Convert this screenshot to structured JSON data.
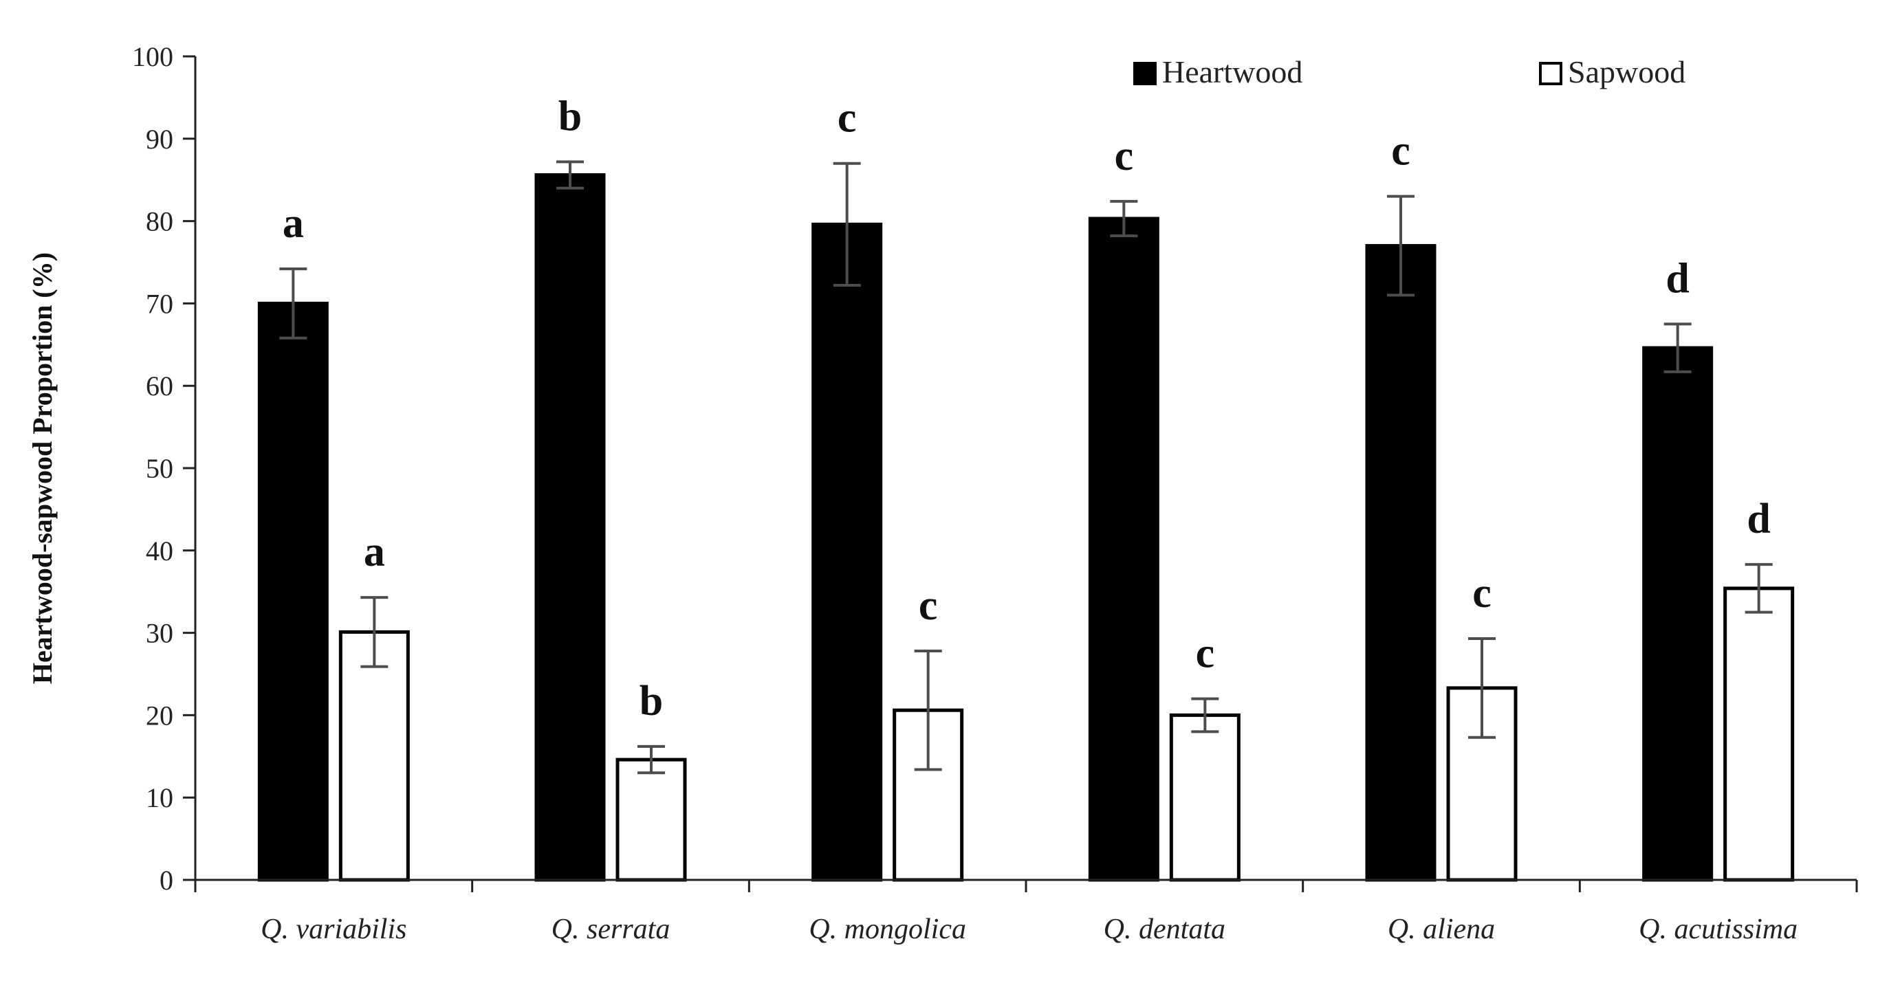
{
  "chart_data": {
    "type": "bar",
    "title": "",
    "xlabel": "",
    "ylabel": "Heartwood-sapwood Proportion (%)",
    "ylim": [
      0,
      100
    ],
    "yticks": [
      0,
      10,
      20,
      30,
      40,
      50,
      60,
      70,
      80,
      90,
      100
    ],
    "grid": false,
    "legend_position": "top-right",
    "categories": [
      "Q. variabilis",
      "Q. serrata",
      "Q. mongolica",
      "Q. dentata",
      "Q. aliena",
      "Q. acutissima"
    ],
    "series": [
      {
        "name": "Heartwood",
        "color": "#000000",
        "values": [
          70.0,
          85.6,
          79.6,
          80.3,
          77.0,
          64.6
        ],
        "errors": [
          4.2,
          1.6,
          7.4,
          2.1,
          6.0,
          2.9
        ],
        "significance": [
          "a",
          "b",
          "c",
          "c",
          "c",
          "d"
        ]
      },
      {
        "name": "Sapwood",
        "color": "#ffffff",
        "values": [
          30.1,
          14.6,
          20.6,
          20.0,
          23.3,
          35.4
        ],
        "errors": [
          4.2,
          1.6,
          7.2,
          2.0,
          6.0,
          2.9
        ],
        "significance": [
          "a",
          "b",
          "c",
          "c",
          "c",
          "d"
        ]
      }
    ]
  }
}
